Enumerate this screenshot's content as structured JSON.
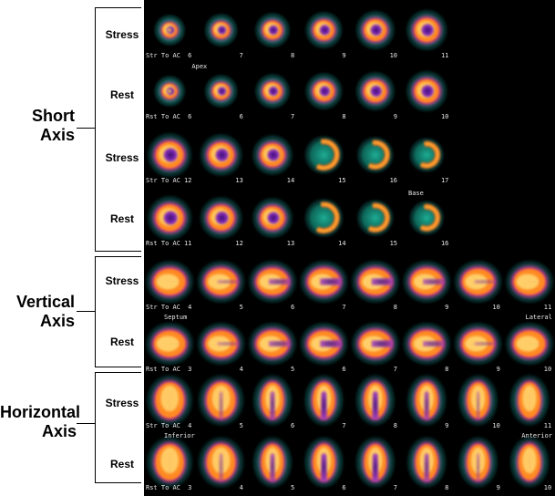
{
  "groups": [
    {
      "id": "short",
      "label": "Short\nAxis",
      "rows": [
        {
          "label": "Stress",
          "caption": "Str To AC",
          "nums": [
            "6",
            "7",
            "8",
            "9",
            "10",
            "11"
          ],
          "kind": "sa",
          "anno": null
        },
        {
          "label": "Rest",
          "caption": "Rst To AC",
          "nums": [
            "6",
            "6",
            "7",
            "8",
            "9",
            "10"
          ],
          "kind": "sa",
          "anno": {
            "text": "Apex",
            "pos": "top",
            "slot": 1
          }
        },
        {
          "label": "Stress",
          "caption": "Str To AC",
          "nums": [
            "12",
            "13",
            "14",
            "15",
            "16",
            "17"
          ],
          "kind": "sab",
          "anno": null
        },
        {
          "label": "Rest",
          "caption": "Rst To AC",
          "nums": [
            "11",
            "12",
            "13",
            "14",
            "15",
            "16"
          ],
          "kind": "sab",
          "anno": {
            "text": "Base",
            "pos": "top",
            "slot": 5
          }
        }
      ]
    },
    {
      "id": "vertical",
      "label": "Vertical\nAxis",
      "rows": [
        {
          "label": "Stress",
          "caption": "Str To AC",
          "nums": [
            "4",
            "5",
            "6",
            "7",
            "8",
            "9",
            "10",
            "11"
          ],
          "kind": "va",
          "anno": null
        },
        {
          "label": "Rest",
          "caption": "Rst To AC",
          "nums": [
            "3",
            "4",
            "5",
            "6",
            "7",
            "8",
            "9",
            "10"
          ],
          "kind": "va",
          "anno": {
            "left": "Septum",
            "right": "Lateral"
          }
        }
      ]
    },
    {
      "id": "horizontal",
      "label": "Horizontal\nAxis",
      "rows": [
        {
          "label": "Stress",
          "caption": "Str To AC",
          "nums": [
            "4",
            "5",
            "6",
            "7",
            "8",
            "9",
            "10",
            "11"
          ],
          "kind": "ha",
          "anno": null
        },
        {
          "label": "Rest",
          "caption": "Rst To AC",
          "nums": [
            "3",
            "4",
            "5",
            "6",
            "7",
            "8",
            "9",
            "10"
          ],
          "kind": "ha",
          "anno": {
            "left": "Inferior",
            "right": "Anterior"
          }
        }
      ]
    }
  ]
}
